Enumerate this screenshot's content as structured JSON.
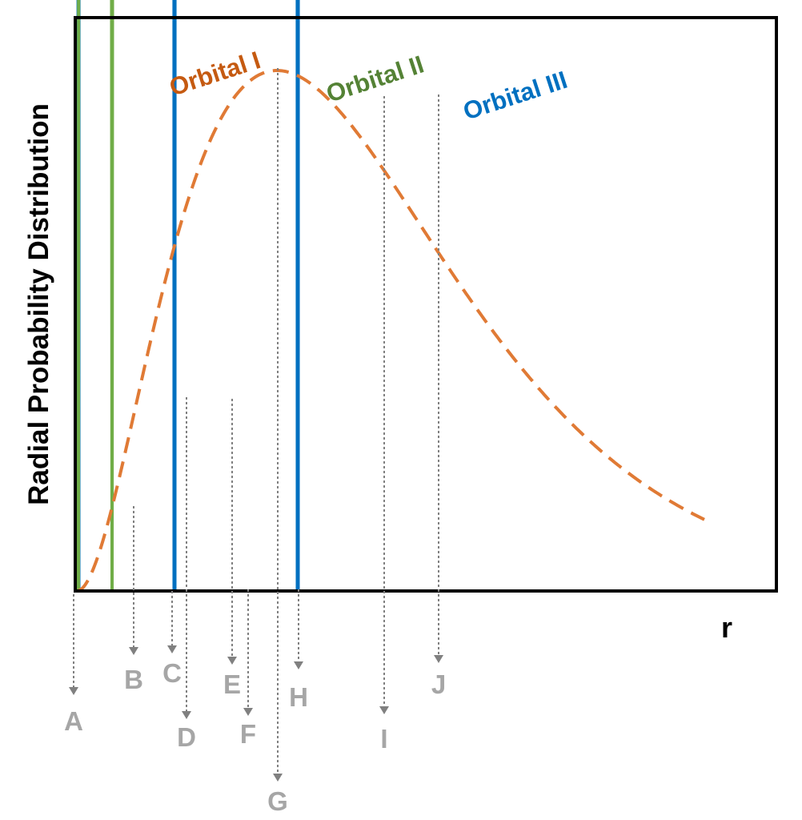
{
  "axes": {
    "ylabel": "Radial Probability Distribution",
    "xlabel": "r"
  },
  "orbitals": [
    {
      "name": "Orbital I",
      "color": "#E07A35",
      "label_color": "#C55A11",
      "style": "dashed"
    },
    {
      "name": "Orbital II",
      "color": "#70AD47",
      "label_color": "#548235",
      "style": "solid"
    },
    {
      "name": "Orbital III",
      "color": "#0070C0",
      "label_color": "#0070C0",
      "style": "dotted"
    }
  ],
  "markers": [
    "A",
    "B",
    "C",
    "D",
    "E",
    "F",
    "G",
    "H",
    "I",
    "J"
  ],
  "colors": {
    "frame": "#000000",
    "marker_line": "#808080",
    "marker_text": "#A6A6A6"
  }
}
